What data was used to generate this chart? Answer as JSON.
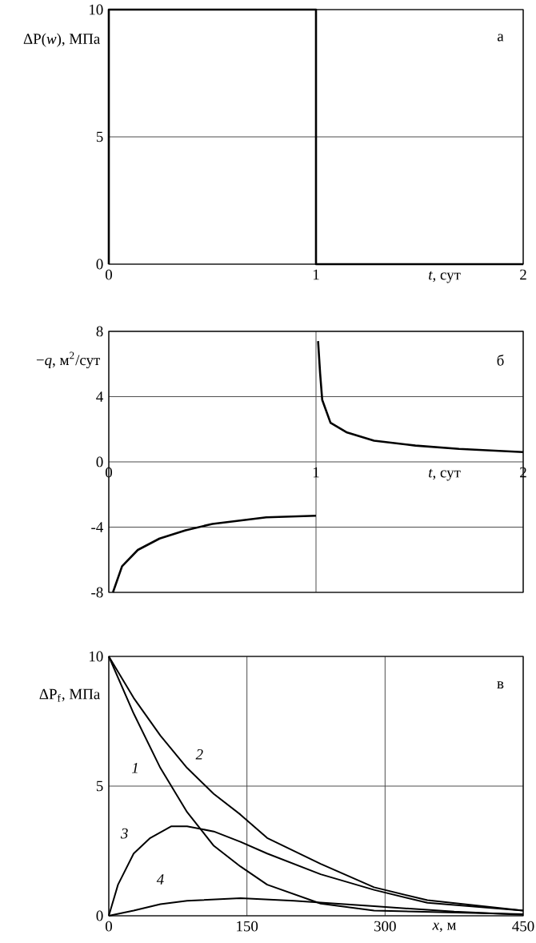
{
  "chart_data": [
    {
      "type": "line",
      "title": "а",
      "xlabel": "*t*, сут",
      "ylabel": "ΔP(*w*), МПа",
      "xlim": [
        0,
        2
      ],
      "ylim": [
        0,
        10
      ],
      "xticks": [
        0,
        1,
        2
      ],
      "yticks": [
        0,
        5,
        10
      ],
      "grid": true,
      "series": [
        {
          "color": "#000000",
          "x": [
            0,
            0,
            1,
            1,
            2
          ],
          "values": [
            0,
            10,
            10,
            0,
            0
          ]
        }
      ]
    },
    {
      "type": "line",
      "title": "б",
      "xlabel": "*t*, сут",
      "ylabel": "−*q*, м$^{2}$/сут",
      "xlim": [
        0,
        2
      ],
      "ylim": [
        -8,
        8
      ],
      "xticks": [
        0,
        1,
        2
      ],
      "yticks": [
        -8,
        -4,
        0,
        4,
        8
      ],
      "grid": true,
      "series": [
        {
          "color": "#000000",
          "x": [
            0.02,
            0.064,
            0.14,
            0.245,
            0.37,
            0.5,
            0.63,
            0.76,
            1.0
          ],
          "values": [
            -8,
            -6.4,
            -5.4,
            -4.7,
            -4.2,
            -3.8,
            -3.6,
            -3.4,
            -3.3
          ]
        },
        {
          "color": "#000000",
          "x": [
            1.01,
            1.02,
            1.03,
            1.07,
            1.15,
            1.28,
            1.48,
            1.69,
            2.0
          ],
          "values": [
            7.4,
            5.4,
            3.8,
            2.4,
            1.8,
            1.3,
            1.0,
            0.8,
            0.6
          ]
        }
      ]
    },
    {
      "type": "line",
      "title": "в",
      "xlabel": "*x*, м",
      "ylabel": "ΔP$_{f}$, МПа",
      "xlim": [
        0,
        450
      ],
      "ylim": [
        0,
        10
      ],
      "xticks": [
        0,
        150,
        300,
        450
      ],
      "yticks": [
        0,
        5,
        10
      ],
      "grid": true,
      "series": [
        {
          "name": "1",
          "color": "#000000",
          "x": [
            0,
            27,
            56,
            85,
            114,
            143,
            172,
            230,
            288,
            450
          ],
          "values": [
            10,
            7.8,
            5.7,
            4.0,
            2.7,
            1.9,
            1.2,
            0.47,
            0.2,
            0.06
          ]
        },
        {
          "name": "2",
          "color": "#000000",
          "x": [
            0,
            27,
            56,
            85,
            114,
            143,
            172,
            230,
            288,
            346,
            450
          ],
          "values": [
            10,
            8.4,
            6.95,
            5.7,
            4.7,
            3.9,
            3.0,
            2.0,
            1.1,
            0.6,
            0.2
          ]
        },
        {
          "name": "3",
          "color": "#000000",
          "x": [
            0,
            10,
            27,
            45,
            68,
            85,
            114,
            143,
            172,
            230,
            288,
            346,
            450
          ],
          "values": [
            0,
            1.2,
            2.4,
            3.0,
            3.45,
            3.45,
            3.25,
            2.85,
            2.4,
            1.6,
            1.0,
            0.5,
            0.2
          ]
        },
        {
          "name": "4",
          "color": "#000000",
          "x": [
            0,
            27,
            56,
            85,
            143,
            201,
            288,
            375,
            450
          ],
          "values": [
            0,
            0.2,
            0.45,
            0.58,
            0.68,
            0.58,
            0.37,
            0.16,
            0.04
          ]
        }
      ]
    }
  ]
}
